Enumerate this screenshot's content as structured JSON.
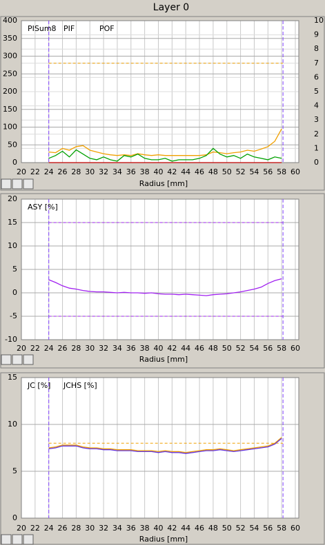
{
  "window_title": "Layer 0",
  "chart_data": [
    {
      "type": "line",
      "x_label": "Radius [mm]",
      "xlim": [
        20,
        60
      ],
      "xticks": [
        20,
        22,
        24,
        26,
        28,
        30,
        32,
        34,
        36,
        38,
        40,
        42,
        44,
        46,
        48,
        50,
        52,
        54,
        56,
        58,
        60
      ],
      "ylim": [
        0,
        400
      ],
      "yticks": [
        0,
        50,
        100,
        150,
        200,
        250,
        300,
        350,
        400
      ],
      "y2lim": [
        0,
        10
      ],
      "y2ticks": [
        0,
        1,
        2,
        3,
        4,
        5,
        6,
        7,
        8,
        9,
        10
      ],
      "grid": true,
      "x": [
        24,
        25,
        26,
        27,
        28,
        29,
        30,
        31,
        32,
        33,
        34,
        35,
        36,
        37,
        38,
        39,
        40,
        41,
        42,
        43,
        44,
        45,
        46,
        47,
        48,
        49,
        50,
        51,
        52,
        53,
        54,
        55,
        56,
        57,
        58
      ],
      "series": [
        {
          "name": "PISum8",
          "color": "#f0a000",
          "values": [
            30,
            28,
            40,
            35,
            45,
            48,
            35,
            30,
            25,
            22,
            20,
            22,
            20,
            25,
            22,
            20,
            22,
            20,
            20,
            20,
            20,
            20,
            20,
            22,
            30,
            28,
            25,
            28,
            30,
            35,
            32,
            38,
            45,
            60,
            95
          ]
        },
        {
          "name": "PIF",
          "color": "#00a000",
          "axis": "y2",
          "values": [
            0.3,
            0.5,
            0.8,
            0.4,
            0.9,
            0.6,
            0.3,
            0.2,
            0.4,
            0.2,
            0.1,
            0.5,
            0.4,
            0.6,
            0.3,
            0.2,
            0.2,
            0.3,
            0.1,
            0.2,
            0.2,
            0.2,
            0.3,
            0.5,
            1.0,
            0.6,
            0.4,
            0.5,
            0.3,
            0.6,
            0.4,
            0.3,
            0.2,
            0.4,
            0.3
          ]
        },
        {
          "name": "POF",
          "color": "#c00000",
          "axis": "y2",
          "values": [
            0,
            0,
            0,
            0,
            0,
            0,
            0,
            0,
            0,
            0,
            0,
            0,
            0,
            0,
            0,
            0,
            0,
            0,
            0,
            0,
            0,
            0,
            0,
            0,
            0,
            0,
            0,
            0,
            0,
            0,
            0,
            0,
            0,
            0,
            0
          ]
        }
      ],
      "thresholds": [
        {
          "value": 280,
          "color": "#f0a000"
        }
      ],
      "markers_x": [
        24,
        58.2
      ],
      "marker_color": "#8040ff"
    },
    {
      "type": "line",
      "x_label": "Radius [mm]",
      "xlim": [
        20,
        60
      ],
      "xticks": [
        20,
        22,
        24,
        26,
        28,
        30,
        32,
        34,
        36,
        38,
        40,
        42,
        44,
        46,
        48,
        50,
        52,
        54,
        56,
        58,
        60
      ],
      "ylim": [
        -10,
        20
      ],
      "yticks": [
        -10,
        -5,
        0,
        5,
        10,
        15,
        20
      ],
      "grid": true,
      "x": [
        24,
        25,
        26,
        27,
        28,
        29,
        30,
        31,
        32,
        33,
        34,
        35,
        36,
        37,
        38,
        39,
        40,
        41,
        42,
        43,
        44,
        45,
        46,
        47,
        48,
        49,
        50,
        51,
        52,
        53,
        54,
        55,
        56,
        57,
        58
      ],
      "series": [
        {
          "name": "ASY [%]",
          "color": "#a020f0",
          "values": [
            2.8,
            2.2,
            1.5,
            1.0,
            0.8,
            0.5,
            0.3,
            0.2,
            0.2,
            0.1,
            0.0,
            0.1,
            0.0,
            0.0,
            -0.1,
            0.0,
            -0.2,
            -0.3,
            -0.3,
            -0.4,
            -0.3,
            -0.4,
            -0.5,
            -0.6,
            -0.4,
            -0.3,
            -0.2,
            0.0,
            0.2,
            0.5,
            0.8,
            1.2,
            2.0,
            2.6,
            3.0
          ]
        }
      ],
      "thresholds": [
        {
          "value": 15,
          "color": "#a020f0"
        },
        {
          "value": -5,
          "color": "#a020f0"
        }
      ],
      "markers_x": [
        24,
        58.2
      ],
      "marker_color": "#8040ff"
    },
    {
      "type": "line",
      "x_label": "Radius [mm]",
      "xlim": [
        20,
        60
      ],
      "xticks": [
        20,
        22,
        24,
        26,
        28,
        30,
        32,
        34,
        36,
        38,
        40,
        42,
        44,
        46,
        48,
        50,
        52,
        54,
        56,
        58,
        60
      ],
      "ylim": [
        0,
        15
      ],
      "yticks": [
        0,
        5,
        10,
        15
      ],
      "grid": true,
      "x": [
        24,
        25,
        26,
        27,
        28,
        29,
        30,
        31,
        32,
        33,
        34,
        35,
        36,
        37,
        38,
        39,
        40,
        41,
        42,
        43,
        44,
        45,
        46,
        47,
        48,
        49,
        50,
        51,
        52,
        53,
        54,
        55,
        56,
        57,
        58
      ],
      "series": [
        {
          "name": "JC [%]",
          "color": "#f0a000",
          "values": [
            7.5,
            7.6,
            7.8,
            7.8,
            7.8,
            7.6,
            7.5,
            7.5,
            7.4,
            7.4,
            7.3,
            7.3,
            7.3,
            7.2,
            7.2,
            7.2,
            7.1,
            7.2,
            7.1,
            7.1,
            7.0,
            7.1,
            7.2,
            7.3,
            7.3,
            7.4,
            7.3,
            7.2,
            7.3,
            7.4,
            7.5,
            7.6,
            7.7,
            8.0,
            8.6
          ]
        },
        {
          "name": "JCHS [%]",
          "color": "#6030e0",
          "values": [
            7.4,
            7.5,
            7.7,
            7.7,
            7.7,
            7.5,
            7.4,
            7.4,
            7.3,
            7.3,
            7.2,
            7.2,
            7.2,
            7.1,
            7.1,
            7.1,
            7.0,
            7.1,
            7.0,
            7.0,
            6.9,
            7.0,
            7.1,
            7.2,
            7.2,
            7.3,
            7.2,
            7.1,
            7.2,
            7.3,
            7.4,
            7.5,
            7.6,
            7.9,
            8.5
          ]
        }
      ],
      "thresholds": [
        {
          "value": 8,
          "color": "#f0a000"
        }
      ],
      "markers_x": [
        24,
        58.2
      ],
      "marker_color": "#8040ff"
    }
  ]
}
